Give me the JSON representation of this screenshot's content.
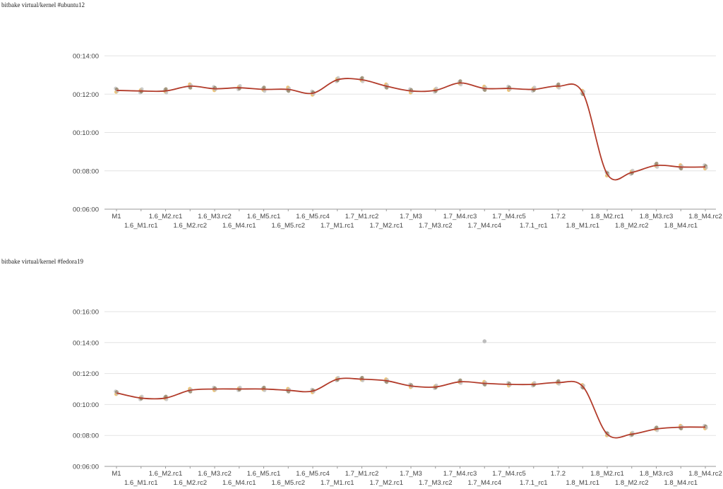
{
  "charts": [
    {
      "title": "bitbake virtual/kernel #ubuntu12"
    },
    {
      "title": "bitbake virtual/kernel #fedora19"
    }
  ],
  "colors": {
    "trend_line": "#b23b2a",
    "point_dark": "#8a7a5a",
    "point_gray": "#bdbdbd",
    "point_orange": "#e8b04a",
    "gridline": "#e3e3e3",
    "axis": "#9a9a9a",
    "tick_text": "#444444"
  },
  "chart_data": [
    {
      "type": "line",
      "title": "bitbake virtual/kernel #ubuntu12",
      "categories": [
        "M1",
        "1.6_M1.rc1",
        "1.6_M2.rc1",
        "1.6_M2.rc2",
        "1.6_M3.rc2",
        "1.6_M4.rc1",
        "1.6_M5.rc1",
        "1.6_M5.rc2",
        "1.6_M5.rc4",
        "1.7_M1.rc1",
        "1.7_M1.rc2",
        "1.7_M2.rc1",
        "1.7_M3",
        "1.7_M3.rc2",
        "1.7_M4.rc3",
        "1.7_M4.rc4",
        "1.7_M4.rc5",
        "1.7.1_rc1",
        "1.7.2",
        "1.8_M1.rc1",
        "1.8_M2.rc1",
        "1.8_M2.rc2",
        "1.8_M3.rc3",
        "1.8_M4.rc1",
        "1.8_M4.rc2"
      ],
      "values": [
        "00:12:12",
        "00:12:10",
        "00:12:10",
        "00:12:25",
        "00:12:17",
        "00:12:20",
        "00:12:15",
        "00:12:15",
        "00:12:03",
        "00:12:45",
        "00:12:45",
        "00:12:25",
        "00:12:10",
        "00:12:12",
        "00:12:35",
        "00:12:18",
        "00:12:18",
        "00:12:15",
        "00:12:25",
        "00:12:05",
        "00:07:50",
        "00:07:55",
        "00:08:17",
        "00:08:12",
        "00:08:12"
      ],
      "ylim": [
        "00:06:00",
        "00:14:00"
      ],
      "yticks": [
        "00:06:00",
        "00:08:00",
        "00:10:00",
        "00:12:00",
        "00:14:00"
      ],
      "grid": true,
      "legend": "none"
    },
    {
      "type": "line",
      "title": "bitbake virtual/kernel #fedora19",
      "categories": [
        "M1",
        "1.6_M1.rc1",
        "1.6_M2.rc1",
        "1.6_M2.rc2",
        "1.6_M3.rc2",
        "1.6_M4.rc1",
        "1.6_M5.rc1",
        "1.6_M5.rc2",
        "1.6_M5.rc4",
        "1.7_M1.rc1",
        "1.7_M1.rc2",
        "1.7_M2.rc1",
        "1.7_M3",
        "1.7_M3.rc2",
        "1.7_M4.rc3",
        "1.7_M4.rc4",
        "1.7_M4.rc5",
        "1.7.1_rc1",
        "1.7.2",
        "1.8_M1.rc1",
        "1.8_M2.rc1",
        "1.8_M2.rc2",
        "1.8_M3.rc3",
        "1.8_M4.rc1",
        "1.8_M4.rc2"
      ],
      "values": [
        "00:10:45",
        "00:10:25",
        "00:10:25",
        "00:10:55",
        "00:11:00",
        "00:11:00",
        "00:11:00",
        "00:10:55",
        "00:10:52",
        "00:11:38",
        "00:11:38",
        "00:11:32",
        "00:11:12",
        "00:11:08",
        "00:11:28",
        "00:11:22",
        "00:11:18",
        "00:11:18",
        "00:11:25",
        "00:11:10",
        "00:08:05",
        "00:08:05",
        "00:08:25",
        "00:08:32",
        "00:08:32"
      ],
      "outliers": [
        {
          "category": "1.7_M4.rc4",
          "value": "00:14:05"
        }
      ],
      "ylim": [
        "00:06:00",
        "00:16:00"
      ],
      "yticks": [
        "00:06:00",
        "00:08:00",
        "00:10:00",
        "00:12:00",
        "00:14:00",
        "00:16:00"
      ],
      "grid": true,
      "legend": "none"
    }
  ]
}
